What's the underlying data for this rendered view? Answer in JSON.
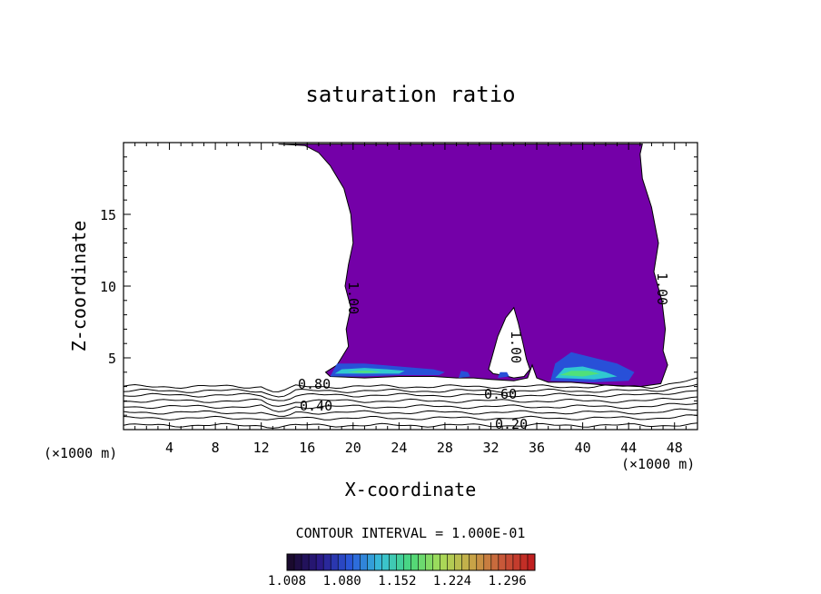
{
  "chart_data": {
    "type": "contour",
    "title": "saturation ratio",
    "xlabel": "X-coordinate",
    "ylabel": "Z-coordinate",
    "x_unit": "(×1000 m)",
    "z_unit": "(×1000 m)",
    "xlim": [
      0,
      50
    ],
    "ylim": [
      0,
      20
    ],
    "x_ticks": [
      4,
      8,
      12,
      16,
      20,
      24,
      28,
      32,
      36,
      40,
      44,
      48
    ],
    "y_ticks": [
      5,
      10,
      15
    ],
    "contour_interval_text": "CONTOUR INTERVAL = 1.000E-01",
    "contour_labels": [
      "0.20",
      "0.40",
      "0.60",
      "0.80",
      "1.00",
      "1.00",
      "1.00"
    ],
    "colorbar": {
      "labels": [
        "1.008",
        "1.080",
        "1.152",
        "1.224",
        "1.296"
      ],
      "min": 1.008,
      "max": 1.332,
      "colors": [
        "#1a0a2e",
        "#2a1a8a",
        "#2a5adc",
        "#38c0d8",
        "#4ad87a",
        "#a8dc58",
        "#c8a848",
        "#c85a3a",
        "#c02020"
      ]
    },
    "fill_colors": {
      "supersaturated": "#7400a8",
      "band_blue": "#2850d8",
      "band_cyan": "#30c8d0",
      "band_green": "#50e07a"
    },
    "grid": false
  }
}
